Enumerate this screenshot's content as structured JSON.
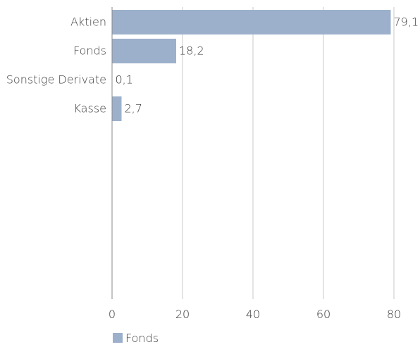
{
  "chart_data": {
    "type": "bar",
    "orientation": "horizontal",
    "categories": [
      "Aktien",
      "Fonds",
      "Sonstige Derivate",
      "Kasse"
    ],
    "series": [
      {
        "name": "Fonds",
        "values": [
          79.1,
          18.2,
          0.1,
          2.7
        ],
        "value_labels": [
          "79,1",
          "18,2",
          "0,1",
          "2,7"
        ]
      }
    ],
    "xlim": [
      0,
      80
    ],
    "x_ticks": [
      0,
      20,
      40,
      60,
      80
    ],
    "x_tick_labels": [
      "0",
      "20",
      "40",
      "60",
      "80"
    ],
    "grid": "vertical",
    "legend": "bottom-left",
    "colors": {
      "bar": "#9cb0cb",
      "grid": "#c8c8c8",
      "axis": "#8a8a8a",
      "text": "#3a3a3a"
    }
  }
}
